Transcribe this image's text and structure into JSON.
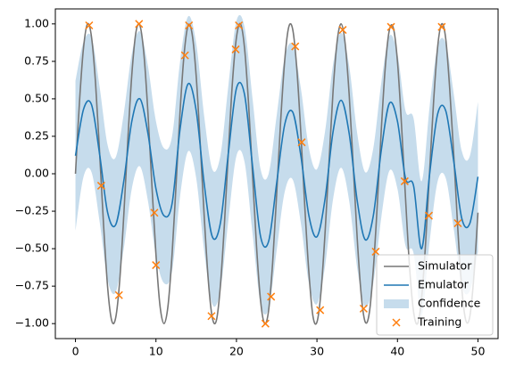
{
  "chart_data": {
    "type": "line",
    "xlim": [
      -2.5,
      52.5
    ],
    "ylim": [
      -1.1,
      1.1
    ],
    "xticks": [
      0,
      10,
      20,
      30,
      40,
      50
    ],
    "yticks": [
      {
        "value": -1,
        "label": "−1.00"
      },
      {
        "value": -0.75,
        "label": "−0.75"
      },
      {
        "value": -0.5,
        "label": "−0.50"
      },
      {
        "value": -0.25,
        "label": "−0.25"
      },
      {
        "value": 0,
        "label": "0.00"
      },
      {
        "value": 0.25,
        "label": "0.25"
      },
      {
        "value": 0.5,
        "label": "0.50"
      },
      {
        "value": 0.75,
        "label": "0.75"
      },
      {
        "value": 1,
        "label": "1.00"
      }
    ],
    "legend": "lower right",
    "series": [
      {
        "name": "Simulator",
        "kind": "line",
        "color": "#777777",
        "x": [
          0,
          0.5,
          1,
          1.5,
          2,
          2.5,
          3,
          3.5,
          4,
          4.5,
          5,
          5.5,
          6,
          6.5,
          7,
          7.5,
          8,
          8.5,
          9,
          9.5,
          10,
          10.5,
          11,
          11.5,
          12,
          12.5,
          13,
          13.5,
          14,
          14.5,
          15,
          15.5,
          16,
          16.5,
          17,
          17.5,
          18,
          18.5,
          19,
          19.5,
          20,
          20.5,
          21,
          21.5,
          22,
          22.5,
          23,
          23.5,
          24,
          24.5,
          25,
          25.5,
          26,
          26.5,
          27,
          27.5,
          28,
          28.5,
          29,
          29.5,
          30,
          30.5,
          31,
          31.5,
          32,
          32.5,
          33,
          33.5,
          34,
          34.5,
          35,
          35.5,
          36,
          36.5,
          37,
          37.5,
          38,
          38.5,
          39,
          39.5,
          40,
          40.5,
          41,
          41.5,
          42,
          42.5,
          43,
          43.5,
          44,
          44.5,
          45,
          45.5,
          46,
          46.5,
          47,
          47.5,
          48,
          48.5,
          49,
          49.5,
          50
        ],
        "values": [
          0,
          0.48,
          0.84,
          1.0,
          0.91,
          0.6,
          0.14,
          -0.35,
          -0.76,
          -0.98,
          -0.96,
          -0.71,
          -0.28,
          0.22,
          0.66,
          0.94,
          0.99,
          0.8,
          0.41,
          -0.08,
          -0.54,
          -0.88,
          -1.0,
          -0.88,
          -0.54,
          -0.07,
          0.42,
          0.8,
          0.99,
          0.93,
          0.65,
          0.2,
          -0.29,
          -0.71,
          -0.96,
          -0.98,
          -0.75,
          -0.34,
          0.15,
          0.61,
          0.91,
          1.0,
          0.84,
          0.47,
          -0.01,
          -0.49,
          -0.85,
          -1.0,
          -0.91,
          -0.59,
          -0.13,
          0.36,
          0.76,
          0.98,
          0.96,
          0.7,
          0.27,
          -0.23,
          -0.66,
          -0.95,
          -0.99,
          -0.79,
          -0.4,
          0.08,
          0.55,
          0.88,
          1.0,
          0.87,
          0.53,
          0.06,
          -0.43,
          -0.81,
          -0.99,
          -0.93,
          -0.64,
          -0.2,
          0.3,
          0.72,
          0.96,
          0.97,
          0.75,
          0.33,
          -0.16,
          -0.62,
          -0.92,
          -1.0,
          -0.83,
          -0.46,
          0.02,
          0.49,
          0.85,
          1.0,
          0.9,
          0.56,
          0.12,
          -0.37,
          -0.77,
          -0.98,
          -0.95,
          -0.68,
          -0.26
        ]
      },
      {
        "name": "Emulator",
        "kind": "line",
        "color": "#1f77b4",
        "x": [
          0,
          1,
          2,
          3,
          4,
          5,
          6,
          7,
          8,
          9,
          10,
          11,
          12,
          13,
          14,
          15,
          16,
          17,
          18,
          19,
          20,
          21,
          22,
          23,
          24,
          25,
          26,
          27,
          28,
          29,
          30,
          31,
          32,
          33,
          34,
          35,
          36,
          37,
          38,
          39,
          40,
          41,
          42,
          43,
          44,
          45,
          46,
          47,
          48,
          49,
          50
        ],
        "values": [
          0.12,
          0.43,
          0.46,
          0.13,
          -0.26,
          -0.34,
          -0.05,
          0.35,
          0.5,
          0.27,
          -0.1,
          -0.28,
          -0.2,
          0.3,
          0.6,
          0.42,
          -0.07,
          -0.42,
          -0.33,
          0.14,
          0.57,
          0.53,
          0.05,
          -0.42,
          -0.45,
          -0.06,
          0.33,
          0.41,
          0.12,
          -0.28,
          -0.42,
          -0.17,
          0.28,
          0.49,
          0.27,
          -0.18,
          -0.44,
          -0.28,
          0.16,
          0.47,
          0.35,
          -0.03,
          -0.08,
          -0.5,
          0.0,
          0.4,
          0.42,
          0.08,
          -0.3,
          -0.33,
          -0.02
        ]
      },
      {
        "name": "Confidence",
        "kind": "band",
        "color": "#c6dcec",
        "x": [
          0,
          1,
          2,
          3,
          4,
          5,
          6,
          7,
          8,
          9,
          10,
          11,
          12,
          13,
          14,
          15,
          16,
          17,
          18,
          19,
          20,
          21,
          22,
          23,
          24,
          25,
          26,
          27,
          28,
          29,
          30,
          31,
          32,
          33,
          34,
          35,
          36,
          37,
          38,
          39,
          40,
          41,
          42,
          43,
          44,
          45,
          46,
          47,
          48,
          49,
          50
        ],
        "upper": [
          0.62,
          0.88,
          0.91,
          0.58,
          0.19,
          0.11,
          0.4,
          0.8,
          0.95,
          0.72,
          0.35,
          0.17,
          0.25,
          0.75,
          1.05,
          0.87,
          0.38,
          0.03,
          0.12,
          0.59,
          1.02,
          0.98,
          0.5,
          0.03,
          0.0,
          0.39,
          0.78,
          0.86,
          0.57,
          0.17,
          0.03,
          0.28,
          0.73,
          0.94,
          0.72,
          0.27,
          0.01,
          0.17,
          0.61,
          0.92,
          0.8,
          0.42,
          0.37,
          -0.05,
          0.45,
          0.85,
          0.87,
          0.53,
          0.15,
          0.12,
          0.48
        ],
        "lower": [
          -0.38,
          -0.02,
          0.01,
          -0.32,
          -0.71,
          -0.79,
          -0.5,
          -0.1,
          0.05,
          -0.18,
          -0.55,
          -0.73,
          -0.65,
          -0.15,
          0.15,
          -0.03,
          -0.52,
          -0.87,
          -0.78,
          -0.31,
          0.12,
          0.08,
          -0.4,
          -0.87,
          -0.9,
          -0.51,
          -0.12,
          -0.04,
          -0.33,
          -0.73,
          -0.87,
          -0.62,
          -0.17,
          0.04,
          -0.18,
          -0.63,
          -0.89,
          -0.73,
          -0.29,
          0.02,
          -0.1,
          -0.48,
          -0.53,
          -0.95,
          -0.45,
          -0.05,
          -0.03,
          -0.37,
          -0.75,
          -0.78,
          -0.52
        ]
      },
      {
        "name": "Training",
        "kind": "scatter",
        "color": "#ff7f0e",
        "x": [
          1.7,
          3.2,
          5.4,
          7.9,
          9.8,
          10.0,
          13.6,
          14.1,
          16.9,
          19.9,
          20.3,
          23.6,
          24.3,
          27.3,
          28.1,
          30.4,
          33.2,
          35.8,
          37.3,
          39.2,
          40.9,
          43.9,
          45.5,
          47.5
        ],
        "values": [
          0.99,
          -0.08,
          -0.81,
          1.0,
          -0.26,
          -0.61,
          0.79,
          0.99,
          -0.95,
          0.83,
          0.99,
          -1.0,
          -0.82,
          0.85,
          0.21,
          -0.91,
          0.96,
          -0.9,
          -0.52,
          0.98,
          -0.05,
          -0.28,
          0.98,
          -0.33
        ]
      }
    ]
  }
}
